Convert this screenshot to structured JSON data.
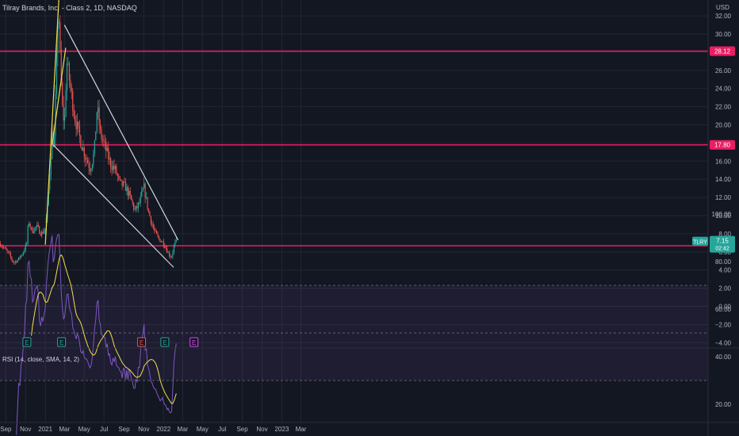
{
  "title": "Tilray Brands, Inc. - Class 2, 1D, NASDAQ",
  "currency": "USD",
  "colors": {
    "background": "#131722",
    "grid": "#232733",
    "up": "#26a69a",
    "down": "#ef5350",
    "level": "#e91e63",
    "channel": "#f5e04a",
    "wedge": "#d1d4dc",
    "rsi_line": "#7e57c2",
    "rsi_sma": "#f5e04a"
  },
  "chart_data": [
    {
      "type": "candlestick",
      "title": "Tilray Brands, Inc. - Class 2, 1D, NASDAQ",
      "x_ticks": [
        "Sep",
        "Nov",
        "2021",
        "Mar",
        "May",
        "Jul",
        "Sep",
        "Nov",
        "2022",
        "Mar",
        "May",
        "Jul",
        "Sep",
        "Nov",
        "2023",
        "Mar"
      ],
      "y_ticks": [
        "32.00",
        "30.00",
        "28.00",
        "26.00",
        "24.00",
        "22.00",
        "20.00",
        "18.00",
        "16.00",
        "14.00",
        "12.00",
        "10.00",
        "8.00",
        "6.00",
        "4.00",
        "2.00",
        "0.00",
        "−2.00",
        "−4.00"
      ],
      "ylim": [
        -4.5,
        32.5
      ],
      "price_anchors": [
        [
          "2020-08-15",
          6.9
        ],
        [
          "2020-09-10",
          5.8
        ],
        [
          "2020-09-25",
          4.8
        ],
        [
          "2020-10-10",
          5.2
        ],
        [
          "2020-10-25",
          6.0
        ],
        [
          "2020-11-05",
          7.0
        ],
        [
          "2020-11-10",
          9.5
        ],
        [
          "2020-11-20",
          8.3
        ],
        [
          "2020-12-05",
          8.8
        ],
        [
          "2020-12-20",
          8.0
        ],
        [
          "2021-01-01",
          8.6
        ],
        [
          "2021-01-08",
          11.0
        ],
        [
          "2021-01-15",
          15.0
        ],
        [
          "2021-01-22",
          19.0
        ],
        [
          "2021-01-28",
          17.5
        ],
        [
          "2021-02-05",
          27.0
        ],
        [
          "2021-02-10",
          34.0
        ],
        [
          "2021-02-15",
          28.0
        ],
        [
          "2021-02-22",
          22.0
        ],
        [
          "2021-03-01",
          20.0
        ],
        [
          "2021-03-08",
          27.0
        ],
        [
          "2021-03-18",
          24.5
        ],
        [
          "2021-04-01",
          21.0
        ],
        [
          "2021-04-20",
          18.2
        ],
        [
          "2021-05-05",
          16.5
        ],
        [
          "2021-05-20",
          15.2
        ],
        [
          "2021-06-01",
          17.0
        ],
        [
          "2021-06-10",
          22.0
        ],
        [
          "2021-06-20",
          19.0
        ],
        [
          "2021-07-05",
          17.5
        ],
        [
          "2021-07-20",
          15.8
        ],
        [
          "2021-08-05",
          15.0
        ],
        [
          "2021-08-20",
          13.5
        ],
        [
          "2021-09-05",
          13.2
        ],
        [
          "2021-09-20",
          12.0
        ],
        [
          "2021-10-05",
          10.5
        ],
        [
          "2021-10-20",
          11.5
        ],
        [
          "2021-11-01",
          13.2
        ],
        [
          "2021-11-15",
          10.5
        ],
        [
          "2021-12-01",
          8.5
        ],
        [
          "2021-12-15",
          7.5
        ],
        [
          "2022-01-01",
          7.0
        ],
        [
          "2022-01-15",
          5.9
        ],
        [
          "2022-01-25",
          5.4
        ],
        [
          "2022-02-03",
          6.8
        ],
        [
          "2022-02-10",
          7.15
        ]
      ],
      "horizontal_levels": [
        {
          "value": 28.12,
          "label": "28.12"
        },
        {
          "value": 17.8,
          "label": "17.80"
        },
        {
          "value": 6.68,
          "label": "6.68"
        }
      ],
      "price_tag": {
        "symbol": "TLRY",
        "value": 7.15,
        "label": "7.15",
        "countdown": "02:42"
      },
      "trendlines": [
        {
          "name": "channel-lower",
          "from": [
            "2021-01-01",
            6.8
          ],
          "to": [
            "2021-02-12",
            34.0
          ]
        },
        {
          "name": "channel-upper",
          "from": [
            "2021-01-22",
            17.8
          ],
          "to": [
            "2021-03-05",
            28.5
          ]
        },
        {
          "name": "wedge-upper",
          "from": [
            "2021-03-01",
            31.0
          ],
          "to": [
            "2022-02-15",
            7.3
          ]
        },
        {
          "name": "wedge-lower",
          "from": [
            "2021-01-25",
            17.8
          ],
          "to": [
            "2022-02-01",
            4.3
          ]
        }
      ],
      "earnings_markers": [
        {
          "date": "2020-11-05",
          "label": "E",
          "status": "past"
        },
        {
          "date": "2021-02-20",
          "label": "E",
          "status": "past"
        },
        {
          "date": "2021-10-25",
          "label": "E",
          "status": "miss"
        },
        {
          "date": "2022-01-05",
          "label": "E",
          "status": "past"
        },
        {
          "date": "2022-04-05",
          "label": "E",
          "status": "upcoming"
        }
      ]
    },
    {
      "type": "line",
      "title": "RSI (14, close, SMA, 14, 2)",
      "y_ticks": [
        "100.00",
        "80.00",
        "60.00",
        "40.00",
        "20.00"
      ],
      "ylim": [
        14,
        100
      ],
      "bands": [
        30,
        70
      ],
      "midline": 50,
      "series": [
        {
          "name": "RSI",
          "style": "rsi"
        },
        {
          "name": "SMA",
          "style": "sma"
        }
      ]
    }
  ]
}
